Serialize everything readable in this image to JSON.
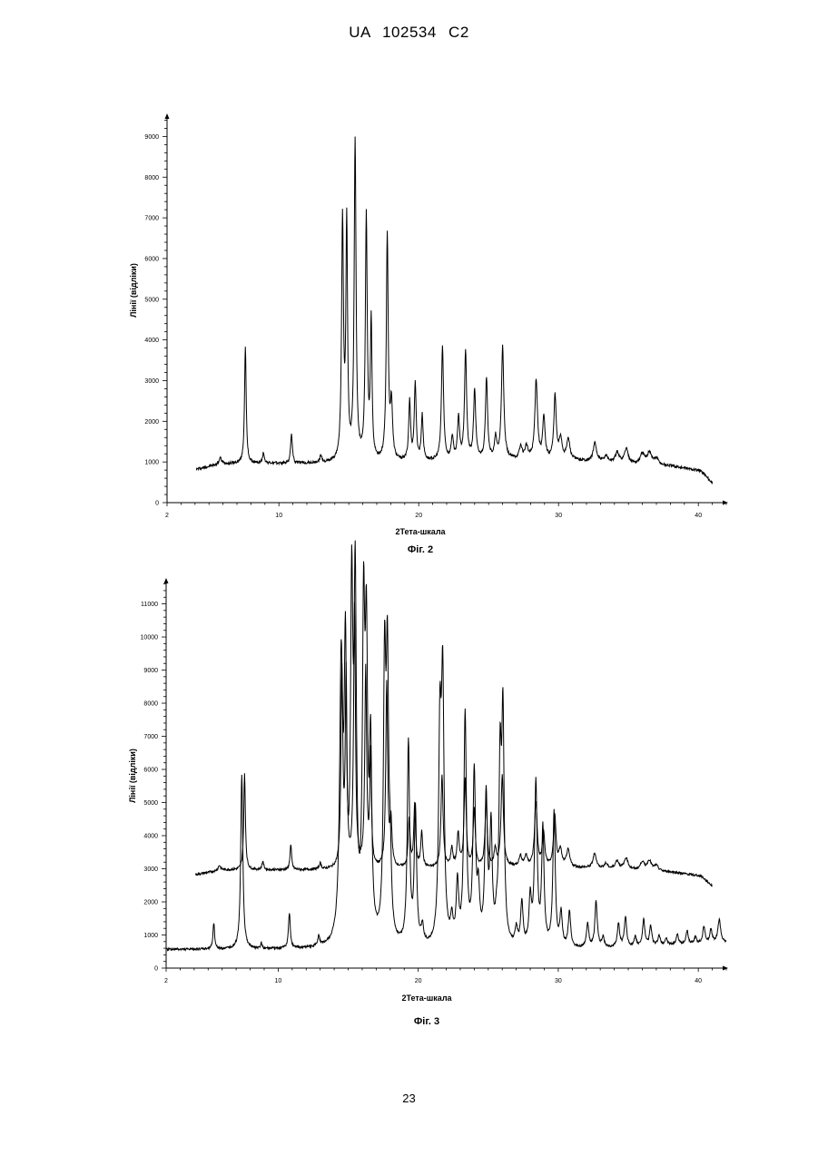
{
  "header": {
    "text": "UA   102534   C2"
  },
  "page_number": "23",
  "chart_data": [
    {
      "type": "line",
      "caption": "Фіг. 2",
      "xlabel": "2Тета-шкала",
      "ylabel": "Лінії (відліки)",
      "xlim": [
        2,
        42
      ],
      "ylim": [
        0,
        9500
      ],
      "xticks": [
        2,
        10,
        20,
        30,
        40
      ],
      "yticks": [
        0,
        1000,
        2000,
        3000,
        4000,
        5000,
        6000,
        7000,
        8000,
        9000
      ],
      "grid": false,
      "series": [
        {
          "x_range": [
            4.1,
            41.0
          ],
          "baseline": [
            [
              4.1,
              820
            ],
            [
              6,
              960
            ],
            [
              14,
              960
            ],
            [
              20,
              1000
            ],
            [
              26,
              1050
            ],
            [
              30,
              1050
            ],
            [
              34,
              980
            ],
            [
              38,
              900
            ],
            [
              40.2,
              780
            ],
            [
              41.0,
              480
            ]
          ],
          "peaks": [
            [
              5.8,
              150,
              0.1
            ],
            [
              7.6,
              2900,
              0.07
            ],
            [
              8.9,
              250,
              0.08
            ],
            [
              10.9,
              750,
              0.07
            ],
            [
              13.0,
              180,
              0.08
            ],
            [
              14.55,
              5850,
              0.08
            ],
            [
              14.85,
              5750,
              0.07
            ],
            [
              15.45,
              7850,
              0.08
            ],
            [
              16.25,
              5950,
              0.08
            ],
            [
              16.6,
              3350,
              0.07
            ],
            [
              17.75,
              5550,
              0.08
            ],
            [
              18.05,
              1350,
              0.09
            ],
            [
              19.35,
              1450,
              0.08
            ],
            [
              19.75,
              1900,
              0.08
            ],
            [
              20.25,
              1100,
              0.08
            ],
            [
              21.7,
              2800,
              0.09
            ],
            [
              22.4,
              550,
              0.09
            ],
            [
              22.85,
              1000,
              0.09
            ],
            [
              23.35,
              2650,
              0.09
            ],
            [
              24.0,
              1700,
              0.09
            ],
            [
              24.85,
              2000,
              0.09
            ],
            [
              25.5,
              500,
              0.09
            ],
            [
              26.0,
              2750,
              0.1
            ],
            [
              27.3,
              300,
              0.12
            ],
            [
              27.7,
              300,
              0.12
            ],
            [
              28.4,
              1950,
              0.11
            ],
            [
              28.95,
              1000,
              0.1
            ],
            [
              29.75,
              1550,
              0.1
            ],
            [
              30.15,
              500,
              0.12
            ],
            [
              30.7,
              500,
              0.14
            ],
            [
              32.6,
              450,
              0.14
            ],
            [
              33.4,
              150,
              0.14
            ],
            [
              34.2,
              250,
              0.16
            ],
            [
              34.85,
              350,
              0.16
            ],
            [
              36.0,
              250,
              0.16
            ],
            [
              36.5,
              300,
              0.18
            ],
            [
              37.0,
              150,
              0.18
            ]
          ]
        }
      ]
    },
    {
      "type": "line",
      "caption": "Фіг. 3",
      "xlabel": "2Тета-шкала",
      "ylabel": "Лінії (відліки)",
      "xlim": [
        2,
        42
      ],
      "ylim": [
        0,
        11700
      ],
      "xticks": [
        2,
        10,
        20,
        30,
        40
      ],
      "yticks": [
        0,
        1000,
        2000,
        3000,
        4000,
        5000,
        6000,
        7000,
        8000,
        9000,
        10000,
        11000
      ],
      "grid": false,
      "series": [
        {
          "x_range": [
            4.1,
            41.0
          ],
          "baseline": [
            [
              4.1,
              2820
            ],
            [
              6,
              2960
            ],
            [
              14,
              2960
            ],
            [
              20,
              3000
            ],
            [
              26,
              3050
            ],
            [
              30,
              3050
            ],
            [
              34,
              2980
            ],
            [
              38,
              2900
            ],
            [
              40.2,
              2780
            ],
            [
              41.0,
              2480
            ]
          ],
          "peaks": [
            [
              5.8,
              150,
              0.1
            ],
            [
              7.6,
              2900,
              0.07
            ],
            [
              8.9,
              250,
              0.08
            ],
            [
              10.9,
              750,
              0.07
            ],
            [
              13.0,
              180,
              0.08
            ],
            [
              14.55,
              5850,
              0.08
            ],
            [
              14.85,
              5750,
              0.07
            ],
            [
              15.45,
              7850,
              0.08
            ],
            [
              16.25,
              5950,
              0.08
            ],
            [
              16.6,
              3350,
              0.07
            ],
            [
              17.75,
              5550,
              0.08
            ],
            [
              18.05,
              1350,
              0.09
            ],
            [
              19.35,
              1450,
              0.08
            ],
            [
              19.75,
              1900,
              0.08
            ],
            [
              20.25,
              1100,
              0.08
            ],
            [
              21.7,
              2800,
              0.09
            ],
            [
              22.4,
              550,
              0.09
            ],
            [
              22.85,
              1000,
              0.09
            ],
            [
              23.35,
              2650,
              0.09
            ],
            [
              24.0,
              1700,
              0.09
            ],
            [
              24.85,
              2000,
              0.09
            ],
            [
              25.5,
              500,
              0.09
            ],
            [
              26.0,
              2750,
              0.1
            ],
            [
              27.3,
              300,
              0.12
            ],
            [
              27.7,
              300,
              0.12
            ],
            [
              28.4,
              1950,
              0.11
            ],
            [
              28.95,
              1000,
              0.1
            ],
            [
              29.75,
              1550,
              0.1
            ],
            [
              30.15,
              500,
              0.12
            ],
            [
              30.7,
              500,
              0.14
            ],
            [
              32.6,
              450,
              0.14
            ],
            [
              33.4,
              150,
              0.14
            ],
            [
              34.2,
              250,
              0.16
            ],
            [
              34.85,
              350,
              0.16
            ],
            [
              36.0,
              250,
              0.16
            ],
            [
              36.5,
              300,
              0.18
            ],
            [
              37.0,
              150,
              0.18
            ]
          ]
        },
        {
          "x_range": [
            2,
            42
          ],
          "baseline": [
            [
              2,
              560
            ],
            [
              14,
              560
            ],
            [
              30,
              560
            ],
            [
              36,
              620
            ],
            [
              38,
              680
            ],
            [
              42,
              760
            ]
          ],
          "peaks": [
            [
              5.4,
              800,
              0.07
            ],
            [
              7.4,
              5250,
              0.09
            ],
            [
              8.8,
              150,
              0.07
            ],
            [
              10.8,
              1050,
              0.08
            ],
            [
              12.9,
              300,
              0.08
            ],
            [
              14.5,
              8200,
              0.13
            ],
            [
              14.8,
              8100,
              0.1
            ],
            [
              15.25,
              9900,
              0.1
            ],
            [
              15.5,
              10200,
              0.1
            ],
            [
              16.1,
              9300,
              0.1
            ],
            [
              16.3,
              8200,
              0.1
            ],
            [
              16.6,
              5600,
              0.1
            ],
            [
              17.6,
              8000,
              0.1
            ],
            [
              17.8,
              7900,
              0.1
            ],
            [
              18.0,
              2000,
              0.1
            ],
            [
              19.3,
              6100,
              0.1
            ],
            [
              19.8,
              4000,
              0.1
            ],
            [
              20.3,
              500,
              0.1
            ],
            [
              21.55,
              6100,
              0.11
            ],
            [
              21.75,
              7600,
              0.11
            ],
            [
              22.4,
              700,
              0.1
            ],
            [
              22.8,
              1800,
              0.1
            ],
            [
              23.35,
              6900,
              0.11
            ],
            [
              24.0,
              5100,
              0.11
            ],
            [
              24.3,
              1400,
              0.1
            ],
            [
              24.85,
              4400,
              0.11
            ],
            [
              25.2,
              3400,
              0.1
            ],
            [
              25.6,
              500,
              0.1
            ],
            [
              25.85,
              5200,
              0.1
            ],
            [
              26.05,
              6700,
              0.1
            ],
            [
              27.0,
              500,
              0.1
            ],
            [
              27.4,
              1300,
              0.1
            ],
            [
              28.0,
              1400,
              0.1
            ],
            [
              28.4,
              4900,
              0.11
            ],
            [
              28.9,
              3500,
              0.1
            ],
            [
              29.7,
              4100,
              0.1
            ],
            [
              30.2,
              1000,
              0.1
            ],
            [
              30.8,
              1100,
              0.1
            ],
            [
              32.1,
              700,
              0.1
            ],
            [
              32.7,
              1400,
              0.1
            ],
            [
              33.2,
              300,
              0.1
            ],
            [
              34.3,
              700,
              0.1
            ],
            [
              34.8,
              900,
              0.1
            ],
            [
              35.5,
              300,
              0.1
            ],
            [
              36.1,
              800,
              0.1
            ],
            [
              36.6,
              600,
              0.1
            ],
            [
              37.2,
              300,
              0.1
            ],
            [
              37.7,
              200,
              0.1
            ],
            [
              38.5,
              300,
              0.1
            ],
            [
              39.2,
              400,
              0.1
            ],
            [
              39.8,
              200,
              0.1
            ],
            [
              40.4,
              500,
              0.1
            ],
            [
              40.9,
              400,
              0.1
            ],
            [
              41.5,
              700,
              0.12
            ]
          ]
        }
      ]
    }
  ]
}
